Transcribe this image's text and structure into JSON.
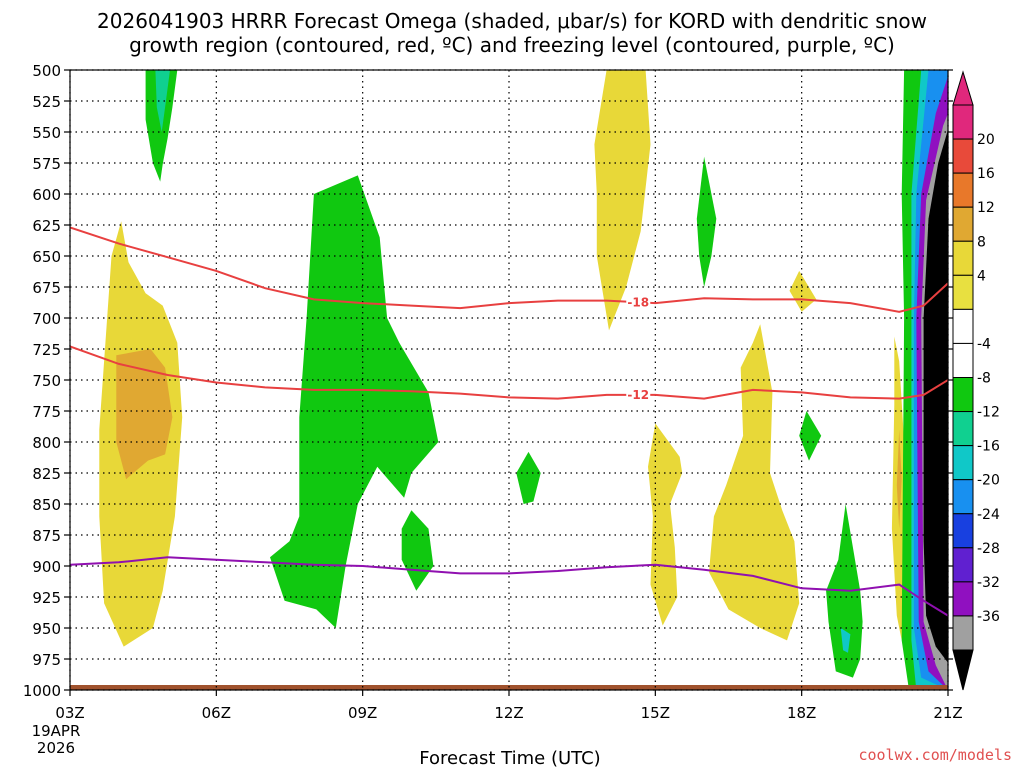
{
  "chart_data": {
    "type": "heatmap",
    "title_line1": "2026041903 HRRR Forecast Omega (shaded, μbar/s) for KORD with dendritic snow",
    "title_line2": "growth region (contoured, red, ºC) and freezing level (contoured, purple, ºC)",
    "xlabel": "Forecast Time (UTC)",
    "date_line1": "19APR",
    "date_line2": "2026",
    "credit": "coolwx.com/models",
    "x_range_hours": [
      3,
      21
    ],
    "y_range_hpa": [
      1000,
      500
    ],
    "x_ticks": [
      {
        "h": 3,
        "label": "03Z"
      },
      {
        "h": 6,
        "label": "06Z"
      },
      {
        "h": 9,
        "label": "09Z"
      },
      {
        "h": 12,
        "label": "12Z"
      },
      {
        "h": 15,
        "label": "15Z"
      },
      {
        "h": 18,
        "label": "18Z"
      },
      {
        "h": 21,
        "label": "21Z"
      }
    ],
    "y_ticks": [
      "500",
      "525",
      "550",
      "575",
      "600",
      "625",
      "650",
      "675",
      "700",
      "725",
      "750",
      "775",
      "800",
      "825",
      "850",
      "875",
      "900",
      "925",
      "950",
      "975",
      "1000"
    ],
    "colorbar": {
      "labels": [
        "20",
        "16",
        "12",
        "8",
        "4",
        "-4",
        "-8",
        "-12",
        "-16",
        "-20",
        "-24",
        "-28",
        "-32",
        "-36"
      ],
      "bins": [
        {
          "color": "#e0287c"
        },
        {
          "color": "#e84a3a"
        },
        {
          "color": "#e8782a"
        },
        {
          "color": "#e0a832"
        },
        {
          "color": "#e8d838"
        },
        {
          "color": "#e8e040"
        },
        {
          "color": "#ffffff"
        },
        {
          "color": "#ffffff"
        },
        {
          "color": "#10c810"
        },
        {
          "color": "#10d090"
        },
        {
          "color": "#10c8c8"
        },
        {
          "color": "#1890f0"
        },
        {
          "color": "#1840e0"
        },
        {
          "color": "#6020d0"
        },
        {
          "color": "#9010c0"
        },
        {
          "color": "#a0a0a0"
        }
      ],
      "bottom_color": "#000000"
    },
    "contours": [
      {
        "name": "dgz-minus-18",
        "label": "-18",
        "color": "#e84040",
        "points": [
          [
            3,
            627
          ],
          [
            4,
            640
          ],
          [
            5,
            651
          ],
          [
            6,
            662
          ],
          [
            7,
            676
          ],
          [
            8,
            685
          ],
          [
            9,
            688
          ],
          [
            10,
            690
          ],
          [
            11,
            692
          ],
          [
            12,
            688
          ],
          [
            13,
            686
          ],
          [
            14,
            686
          ],
          [
            15,
            688
          ],
          [
            16,
            684
          ],
          [
            17,
            685
          ],
          [
            18,
            685
          ],
          [
            19,
            688
          ],
          [
            20,
            695
          ],
          [
            20.5,
            690
          ],
          [
            21,
            672
          ]
        ]
      },
      {
        "name": "dgz-minus-12",
        "label": "-12",
        "color": "#e84040",
        "points": [
          [
            3,
            723
          ],
          [
            4,
            737
          ],
          [
            5,
            746
          ],
          [
            6,
            752
          ],
          [
            7,
            756
          ],
          [
            8,
            758
          ],
          [
            9,
            758
          ],
          [
            10,
            759
          ],
          [
            11,
            761
          ],
          [
            12,
            764
          ],
          [
            13,
            765
          ],
          [
            14,
            762
          ],
          [
            15,
            762
          ],
          [
            16,
            765
          ],
          [
            17,
            758
          ],
          [
            18,
            760
          ],
          [
            19,
            764
          ],
          [
            20,
            765
          ],
          [
            20.5,
            762
          ],
          [
            21,
            750
          ]
        ]
      },
      {
        "name": "freezing-level",
        "label": "",
        "color": "#9010b0",
        "points": [
          [
            3,
            899
          ],
          [
            4,
            897
          ],
          [
            5,
            893
          ],
          [
            6,
            895
          ],
          [
            7,
            897
          ],
          [
            8,
            899
          ],
          [
            9,
            900
          ],
          [
            10,
            903
          ],
          [
            11,
            906
          ],
          [
            12,
            906
          ],
          [
            13,
            904
          ],
          [
            14,
            901
          ],
          [
            15,
            899
          ],
          [
            16,
            903
          ],
          [
            17,
            908
          ],
          [
            18,
            918
          ],
          [
            19,
            920
          ],
          [
            20,
            915
          ],
          [
            20.5,
            928
          ],
          [
            21,
            940
          ]
        ]
      }
    ],
    "omega_regions": [
      {
        "name": "green-0450",
        "value": -6,
        "color": "#10c810",
        "points": [
          [
            4.55,
            500
          ],
          [
            5.2,
            500
          ],
          [
            5.1,
            530
          ],
          [
            5.0,
            555
          ],
          [
            4.9,
            576
          ],
          [
            4.85,
            590
          ],
          [
            4.7,
            575
          ],
          [
            4.55,
            540
          ]
        ]
      },
      {
        "name": "teal-0450",
        "value": -10,
        "color": "#10d090",
        "points": [
          [
            4.75,
            500
          ],
          [
            5.05,
            500
          ],
          [
            4.95,
            530
          ],
          [
            4.88,
            550
          ],
          [
            4.78,
            530
          ]
        ]
      },
      {
        "name": "yellow-0345",
        "value": 6,
        "color": "#e8d838",
        "points": [
          [
            3.6,
            790
          ],
          [
            3.85,
            650
          ],
          [
            4.05,
            622
          ],
          [
            4.2,
            655
          ],
          [
            4.55,
            680
          ],
          [
            4.9,
            690
          ],
          [
            5.2,
            720
          ],
          [
            5.3,
            780
          ],
          [
            5.15,
            860
          ],
          [
            4.9,
            920
          ],
          [
            4.7,
            950
          ],
          [
            4.1,
            965
          ],
          [
            3.7,
            930
          ],
          [
            3.6,
            860
          ]
        ]
      },
      {
        "name": "orange-0345",
        "value": 10,
        "color": "#e0a832",
        "points": [
          [
            3.95,
            730
          ],
          [
            4.65,
            725
          ],
          [
            4.95,
            740
          ],
          [
            5.1,
            780
          ],
          [
            4.95,
            810
          ],
          [
            4.6,
            815
          ],
          [
            4.15,
            830
          ],
          [
            3.95,
            800
          ]
        ]
      },
      {
        "name": "green-0830",
        "value": -6,
        "color": "#10c810",
        "points": [
          [
            8.0,
            600
          ],
          [
            8.9,
            585
          ],
          [
            9.35,
            635
          ],
          [
            9.5,
            700
          ],
          [
            9.75,
            720
          ],
          [
            10.35,
            760
          ],
          [
            10.55,
            800
          ],
          [
            10.0,
            825
          ],
          [
            9.85,
            845
          ],
          [
            9.3,
            820
          ],
          [
            8.9,
            850
          ],
          [
            8.65,
            900
          ],
          [
            8.45,
            950
          ],
          [
            8.05,
            935
          ],
          [
            7.4,
            928
          ],
          [
            7.1,
            893
          ],
          [
            7.5,
            880
          ],
          [
            7.7,
            860
          ],
          [
            7.7,
            780
          ],
          [
            7.85,
            700
          ]
        ]
      },
      {
        "name": "green-1000",
        "value": -6,
        "color": "#10c810",
        "points": [
          [
            10.0,
            855
          ],
          [
            10.35,
            870
          ],
          [
            10.45,
            900
          ],
          [
            10.1,
            920
          ],
          [
            9.8,
            895
          ],
          [
            9.8,
            870
          ]
        ]
      },
      {
        "name": "green-1210",
        "value": -6,
        "color": "#10c810",
        "points": [
          [
            12.4,
            808
          ],
          [
            12.65,
            825
          ],
          [
            12.5,
            848
          ],
          [
            12.3,
            850
          ],
          [
            12.15,
            825
          ]
        ]
      },
      {
        "name": "yellow-1430",
        "value": 6,
        "color": "#e8d838",
        "points": [
          [
            14.0,
            500
          ],
          [
            14.8,
            500
          ],
          [
            14.9,
            560
          ],
          [
            14.7,
            630
          ],
          [
            14.4,
            675
          ],
          [
            14.05,
            710
          ],
          [
            13.8,
            650
          ],
          [
            13.8,
            600
          ],
          [
            13.75,
            560
          ]
        ]
      },
      {
        "name": "green-1600",
        "value": -6,
        "color": "#10c810",
        "points": [
          [
            16.0,
            570
          ],
          [
            16.25,
            620
          ],
          [
            16.15,
            650
          ],
          [
            16.0,
            675
          ],
          [
            15.9,
            650
          ],
          [
            15.85,
            620
          ]
        ]
      },
      {
        "name": "yellow-1550",
        "value": 6,
        "color": "#e8d838",
        "points": [
          [
            15.0,
            785
          ],
          [
            15.5,
            812
          ],
          [
            15.55,
            825
          ],
          [
            15.3,
            850
          ],
          [
            15.4,
            885
          ],
          [
            15.45,
            925
          ],
          [
            15.15,
            948
          ],
          [
            14.9,
            915
          ],
          [
            14.95,
            860
          ],
          [
            14.85,
            820
          ]
        ]
      },
      {
        "name": "yellow-1700",
        "value": 6,
        "color": "#e8d838",
        "points": [
          [
            17.15,
            705
          ],
          [
            17.4,
            760
          ],
          [
            17.35,
            825
          ],
          [
            17.6,
            855
          ],
          [
            17.85,
            880
          ],
          [
            17.95,
            930
          ],
          [
            17.7,
            960
          ],
          [
            17.15,
            950
          ],
          [
            16.5,
            935
          ],
          [
            16.1,
            905
          ],
          [
            16.2,
            860
          ],
          [
            16.45,
            835
          ],
          [
            16.8,
            795
          ],
          [
            16.75,
            740
          ],
          [
            17.0,
            720
          ]
        ]
      },
      {
        "name": "yellow-1800",
        "value": 6,
        "color": "#e8d838",
        "points": [
          [
            17.95,
            662
          ],
          [
            18.3,
            685
          ],
          [
            18.0,
            695
          ],
          [
            17.75,
            678
          ]
        ]
      },
      {
        "name": "green-1810",
        "value": -6,
        "color": "#10c810",
        "points": [
          [
            18.1,
            775
          ],
          [
            18.4,
            795
          ],
          [
            18.15,
            815
          ],
          [
            17.95,
            795
          ]
        ]
      },
      {
        "name": "green-1900",
        "value": -6,
        "color": "#10c810",
        "points": [
          [
            18.9,
            850
          ],
          [
            19.2,
            920
          ],
          [
            19.25,
            945
          ],
          [
            19.2,
            975
          ],
          [
            19.05,
            990
          ],
          [
            18.7,
            985
          ],
          [
            18.55,
            945
          ],
          [
            18.5,
            920
          ],
          [
            18.75,
            895
          ]
        ]
      },
      {
        "name": "teal-1900",
        "value": -10,
        "color": "#10c8c8",
        "points": [
          [
            18.8,
            950
          ],
          [
            19.0,
            955
          ],
          [
            18.95,
            970
          ],
          [
            18.85,
            968
          ]
        ]
      },
      {
        "name": "yellow-2000",
        "value": 6,
        "color": "#e8d838",
        "points": [
          [
            19.9,
            770
          ],
          [
            19.9,
            715
          ],
          [
            20.0,
            735
          ],
          [
            20.1,
            800
          ],
          [
            20.15,
            870
          ],
          [
            20.1,
            925
          ],
          [
            20.05,
            960
          ],
          [
            19.95,
            940
          ],
          [
            19.85,
            870
          ]
        ]
      },
      {
        "name": "orange-2000",
        "value": 10,
        "color": "#e0a832",
        "points": [
          [
            20.0,
            790
          ],
          [
            20.05,
            830
          ],
          [
            20.0,
            870
          ],
          [
            19.95,
            835
          ]
        ]
      },
      {
        "name": "band-green-2030",
        "value": -6,
        "color": "#10c810",
        "points": [
          [
            20.1,
            500
          ],
          [
            21.0,
            500
          ],
          [
            21.0,
            1000
          ],
          [
            20.2,
            1000
          ],
          [
            20.05,
            960
          ],
          [
            20.1,
            700
          ],
          [
            20.05,
            600
          ]
        ]
      },
      {
        "name": "band-teal-2030",
        "value": -10,
        "color": "#10c8c8",
        "points": [
          [
            20.45,
            500
          ],
          [
            21.0,
            500
          ],
          [
            21.0,
            1000
          ],
          [
            20.35,
            1000
          ],
          [
            20.25,
            960
          ],
          [
            20.25,
            700
          ],
          [
            20.25,
            600
          ]
        ]
      },
      {
        "name": "band-blue-2030",
        "value": -18,
        "color": "#1890f0",
        "points": [
          [
            20.6,
            500
          ],
          [
            21.0,
            500
          ],
          [
            21.0,
            1000
          ],
          [
            20.45,
            990
          ],
          [
            20.3,
            950
          ],
          [
            20.3,
            700
          ],
          [
            20.35,
            600
          ]
        ]
      },
      {
        "name": "band-purple-2030",
        "value": -28,
        "color": "#9010c0",
        "points": [
          [
            20.75,
            535
          ],
          [
            21.0,
            505
          ],
          [
            21.0,
            1000
          ],
          [
            20.6,
            985
          ],
          [
            20.4,
            945
          ],
          [
            20.35,
            700
          ],
          [
            20.45,
            600
          ]
        ]
      },
      {
        "name": "band-grey-2030",
        "value": -34,
        "color": "#a0a0a0",
        "points": [
          [
            20.9,
            545
          ],
          [
            21.0,
            535
          ],
          [
            21.0,
            1000
          ],
          [
            20.75,
            980
          ],
          [
            20.5,
            945
          ],
          [
            20.45,
            700
          ],
          [
            20.55,
            605
          ]
        ]
      },
      {
        "name": "band-black-2030",
        "value": -38,
        "color": "#000000",
        "points": [
          [
            21.0,
            548
          ],
          [
            21.0,
            978
          ],
          [
            20.75,
            965
          ],
          [
            20.55,
            940
          ],
          [
            20.5,
            880
          ],
          [
            20.5,
            700
          ],
          [
            20.6,
            620
          ],
          [
            20.8,
            575
          ]
        ]
      }
    ],
    "ground_color": "#a0522d"
  }
}
